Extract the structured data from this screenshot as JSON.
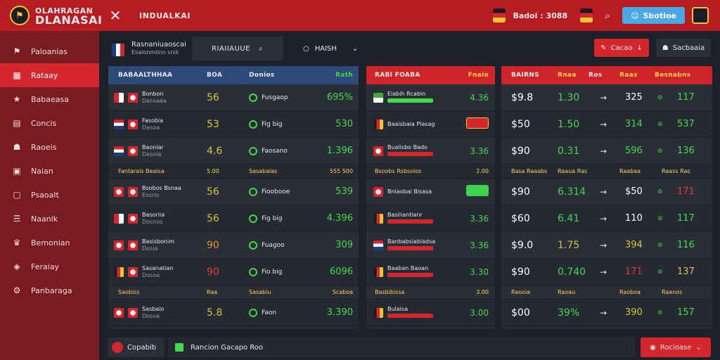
{
  "topbar": {
    "logo_line1": "OLAHRAGAN",
    "logo_line2": "DLANASAI",
    "title": "INDUALKAI",
    "balance": "Badoi : 3088",
    "blue_button": "Sbotioe"
  },
  "sidebar": {
    "items": [
      {
        "label": "Paloanias",
        "icon": "flag-icon",
        "glyph": "⚑"
      },
      {
        "label": "Rataay",
        "icon": "calendar-icon",
        "glyph": "▦"
      },
      {
        "label": "Babaeasa",
        "icon": "star-icon",
        "glyph": "★"
      },
      {
        "label": "Concis",
        "icon": "clipboard-icon",
        "glyph": "▤"
      },
      {
        "label": "Raoeis",
        "icon": "user-icon",
        "glyph": "☗"
      },
      {
        "label": "Naian",
        "icon": "folder-icon",
        "glyph": "▣"
      },
      {
        "label": "Psaoalt",
        "icon": "document-icon",
        "glyph": "▢"
      },
      {
        "label": "Naanik",
        "icon": "list-icon",
        "glyph": "☰"
      },
      {
        "label": "Bemonian",
        "icon": "trophy-icon",
        "glyph": "♛"
      },
      {
        "label": "Feraiay",
        "icon": "chart-icon",
        "glyph": "◈"
      },
      {
        "label": "Panbaraga",
        "icon": "settings-icon",
        "glyph": "⚙"
      }
    ]
  },
  "toolbar": {
    "league_name": "Rasnaniuaoscai",
    "league_sub": "Esalonmlinn snik",
    "search_value": "RIAIIAUUE",
    "select_value": "HAISH",
    "red_button": "Cacao",
    "dark_button": "Sacbaaia"
  },
  "panel1": {
    "headers": [
      "BABAALTHHAA",
      "BOA",
      "Donios",
      "Rath"
    ],
    "rows": [
      {
        "team": "Bonbon",
        "sub": "Dasoaea",
        "flag": "a",
        "score": "56",
        "score_color": "y",
        "status": "Fusgaop",
        "odds": "695%",
        "odds_color": "g"
      },
      {
        "team": "Fasobia",
        "sub": "Dasoa",
        "flag": "b",
        "score": "53",
        "score_color": "y",
        "status": "Fig big",
        "odds": "530",
        "odds_color": "g"
      },
      {
        "team": "Baoniar",
        "sub": "Desoia",
        "flag": "b",
        "score": "4.6",
        "score_color": "y",
        "status": "Faosano",
        "odds": "1.396",
        "odds_color": "g"
      },
      {
        "sub_row": true,
        "team": "Fantarais Beaisa",
        "score": "5.00",
        "status": "Sasabalas",
        "odds": "555 500"
      },
      {
        "team": "Bsobos Bsnaa",
        "sub": "Eosrio",
        "flag": "c",
        "score": "56",
        "score_color": "y",
        "status": "Fioobooe",
        "odds": "539",
        "odds_color": "g"
      },
      {
        "team": "Basoriia",
        "sub": "Dosnos",
        "flag": "a",
        "score": "56",
        "score_color": "y",
        "status": "Fig big",
        "odds": "4.396",
        "odds_color": "g"
      },
      {
        "team": "Basisbonim",
        "sub": "Dosia",
        "flag": "c",
        "score": "90",
        "score_color": "o",
        "status": "Fuagoo",
        "odds": "309",
        "odds_color": "g"
      },
      {
        "team": "Sasanatian",
        "sub": "Dosoa",
        "flag": "d",
        "score": "90",
        "score_color": "r",
        "status": "Fio big",
        "odds": "6096",
        "odds_color": "g"
      },
      {
        "sub_row": true,
        "team": "Saobiss",
        "score": "Raa",
        "status": "Sasabiu",
        "odds": "Scaboa"
      },
      {
        "team": "Sasbaio",
        "sub": "Dosoa",
        "flag": "c",
        "score": "5.8",
        "score_color": "y",
        "status": "Faon",
        "odds": "3.390",
        "odds_color": "g"
      }
    ]
  },
  "panel2": {
    "headers": [
      "RABI FOABA",
      "Fnaio"
    ],
    "rows": [
      {
        "team": "Eiabih Rcabin",
        "flag": "e",
        "odds": "4.36",
        "marker": "bar-green"
      },
      {
        "team": "Baaisbaia Plasag",
        "flag": "d",
        "odds": "",
        "marker": "pill-red"
      },
      {
        "team": "Bualisbo Bado",
        "flag": "c",
        "odds": "3.36",
        "marker": "bar-red"
      },
      {
        "sub_row": true,
        "team": "Bsoobs Rsbsoios",
        "odds": "2.00"
      },
      {
        "team": "Bniaobai Bisasa",
        "flag": "c",
        "odds": "",
        "marker": "pill-green"
      },
      {
        "team": "Basiliantianr",
        "flag": "d",
        "odds": "3.36",
        "marker": "bar-red"
      },
      {
        "team": "Banbabsiabiadsa",
        "flag": "b",
        "odds": "3.36",
        "marker": "bar-red"
      },
      {
        "team": "Baaban Baoan",
        "flag": "d",
        "odds": "3.30",
        "marker": "bar-red"
      },
      {
        "sub_row": true,
        "team": "Basbibissa",
        "odds": "3.00"
      },
      {
        "team": "Bulaisa",
        "flag": "d",
        "odds": "3.00",
        "marker": "bar-red"
      }
    ]
  },
  "panel3": {
    "headers": [
      "BAIRNS",
      "Rnaa",
      "Ros",
      "Raas",
      "Besnabns"
    ],
    "rows": [
      {
        "stake": "$9.8",
        "val": "1.30",
        "val_color": "g",
        "right": "325",
        "right_color": "w",
        "last": "117",
        "last_color": "g"
      },
      {
        "stake": "$50",
        "val": "1.50",
        "val_color": "g",
        "right": "314",
        "right_color": "g",
        "last": "537",
        "last_color": "g"
      },
      {
        "stake": "$90",
        "val": "0.31",
        "val_color": "g",
        "right": "596",
        "right_color": "g",
        "last": "136",
        "last_color": "g"
      },
      {
        "sub_row": true,
        "stake": "Basa Raaabs",
        "val": "Raaua Ras",
        "right": "Raabaa",
        "last": "Raass Ras"
      },
      {
        "stake": "$90",
        "val": "6.314",
        "val_color": "g",
        "right": "$50",
        "right_color": "w",
        "last": "171",
        "last_color": "r"
      },
      {
        "stake": "$60",
        "val": "6.41",
        "val_color": "g",
        "right": "110",
        "right_color": "w",
        "last": "117",
        "last_color": "g"
      },
      {
        "stake": "$9.0",
        "val": "1.75",
        "val_color": "y",
        "right": "394",
        "right_color": "y",
        "last": "116",
        "last_color": "g"
      },
      {
        "stake": "$90",
        "val": "0.740",
        "val_color": "g",
        "right": "171",
        "right_color": "r",
        "last": "137",
        "last_color": "y"
      },
      {
        "sub_row": true,
        "stake": "Raooia",
        "val": "Raoau",
        "right": "Raoboa",
        "last": "Raanos"
      },
      {
        "stake": "$00",
        "val": "39%",
        "val_color": "g",
        "right": "390",
        "right_color": "y",
        "last": "157",
        "last_color": "g"
      }
    ]
  },
  "footer": {
    "left_label": "Copabib",
    "mid_text": "Rancion Gacapo Roo",
    "right_button": "Rocioase"
  },
  "colors": {
    "brand_red": "#b71c22",
    "active_red": "#d3262d",
    "blue_header": "#2e4a78",
    "accent_green": "#44d84a",
    "accent_blue": "#4aa8e6"
  }
}
